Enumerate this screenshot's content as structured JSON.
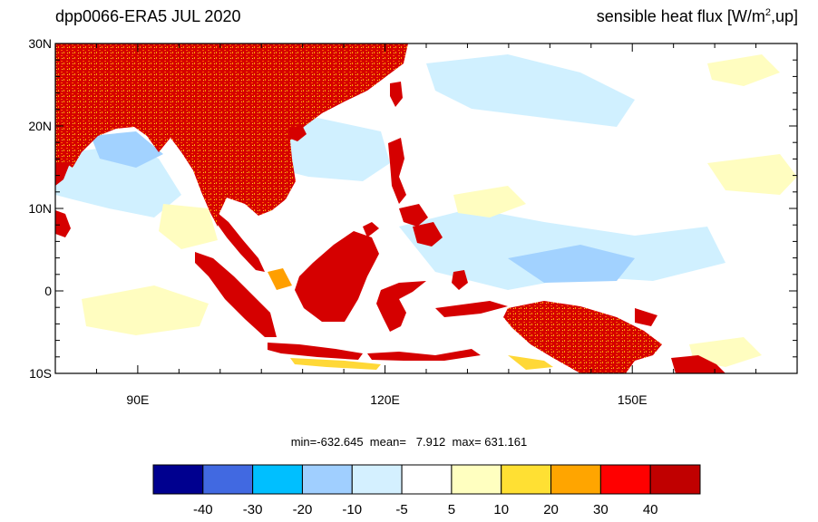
{
  "title_left": "dpp0066-ERA5  JUL 2020",
  "title_right": {
    "prefix": "sensible heat flux [W/m",
    "superscript": "2",
    "suffix": ",up]"
  },
  "map": {
    "lon_range": [
      80,
      170
    ],
    "lat_range": [
      -10,
      30
    ],
    "y_tick_labels": [
      {
        "lat": 30,
        "label": "30N"
      },
      {
        "lat": 20,
        "label": "20N"
      },
      {
        "lat": 10,
        "label": "10N"
      },
      {
        "lat": 0,
        "label": "0"
      },
      {
        "lat": -10,
        "label": "10S"
      }
    ],
    "x_tick_labels": [
      {
        "lon": 90,
        "label": "90E"
      },
      {
        "lon": 120,
        "label": "120E"
      },
      {
        "lon": 150,
        "label": "150E"
      }
    ],
    "colors": {
      "ocean": "#ffffff",
      "land_hot": "#d50000",
      "land_warm": "#ff1a00",
      "land_medium": "#ff9f00",
      "land_light": "#ffd837",
      "ocean_pale_pos": "#fffdc0",
      "ocean_pale_neg": "#d0f0ff",
      "ocean_light_neg": "#a2d2ff",
      "ocean_mid_neg": "#4f8ee8",
      "ocean_strong_neg": "#00c0ff"
    }
  },
  "stats_text": "min=-632.645  mean=   7.912  max= 631.161",
  "colorbar": {
    "colors": [
      "#00008f",
      "#4169e1",
      "#00bfff",
      "#a0cfff",
      "#d4f0ff",
      "#ffffff",
      "#ffffc0",
      "#ffe033",
      "#ffa500",
      "#ff0000",
      "#c00000"
    ],
    "labels": [
      "-40",
      "-30",
      "-20",
      "-10",
      "-5",
      "5",
      "10",
      "20",
      "30",
      "40"
    ]
  }
}
